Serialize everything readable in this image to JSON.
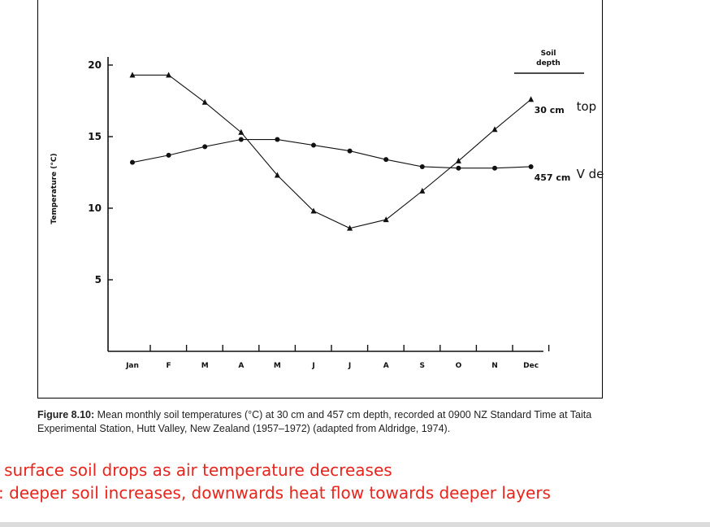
{
  "chart_data": {
    "type": "line",
    "ylabel": "Temperature (°C)",
    "xlabel": "",
    "categories": [
      "Jan",
      "F",
      "M",
      "A",
      "M",
      "J",
      "J",
      "A",
      "S",
      "O",
      "N",
      "Dec"
    ],
    "yticks": [
      5,
      10,
      15,
      20
    ],
    "ylim": [
      0,
      21
    ],
    "legend_title": "Soil depth",
    "series": [
      {
        "name": "30 cm",
        "marker": "triangle",
        "annotation": "top",
        "values": [
          19.3,
          19.3,
          17.4,
          15.3,
          12.3,
          9.8,
          8.6,
          9.2,
          11.2,
          13.3,
          15.5,
          17.6
        ]
      },
      {
        "name": "457 cm",
        "marker": "circle",
        "annotation": "V deep",
        "values": [
          13.2,
          13.7,
          14.3,
          14.8,
          14.8,
          14.4,
          14.0,
          13.4,
          12.9,
          12.8,
          12.8,
          12.9
        ]
      }
    ]
  },
  "caption": {
    "label": "Figure 8.10:",
    "text": " Mean monthly soil temperatures (°C) at 30 cm and 457 cm depth, recorded at 0900 NZ Standard Time at Taita Experimental Station, Hutt Valley, New Zealand (1957–1972) (adapted from Aldridge, 1974)."
  },
  "notes": {
    "line1": ": surface soil drops as air temperature decreases",
    "line2": ": deeper soil increases, downwards heat flow towards deeper layers"
  },
  "colors": {
    "ink": "#111111",
    "note": "#e8241c"
  }
}
